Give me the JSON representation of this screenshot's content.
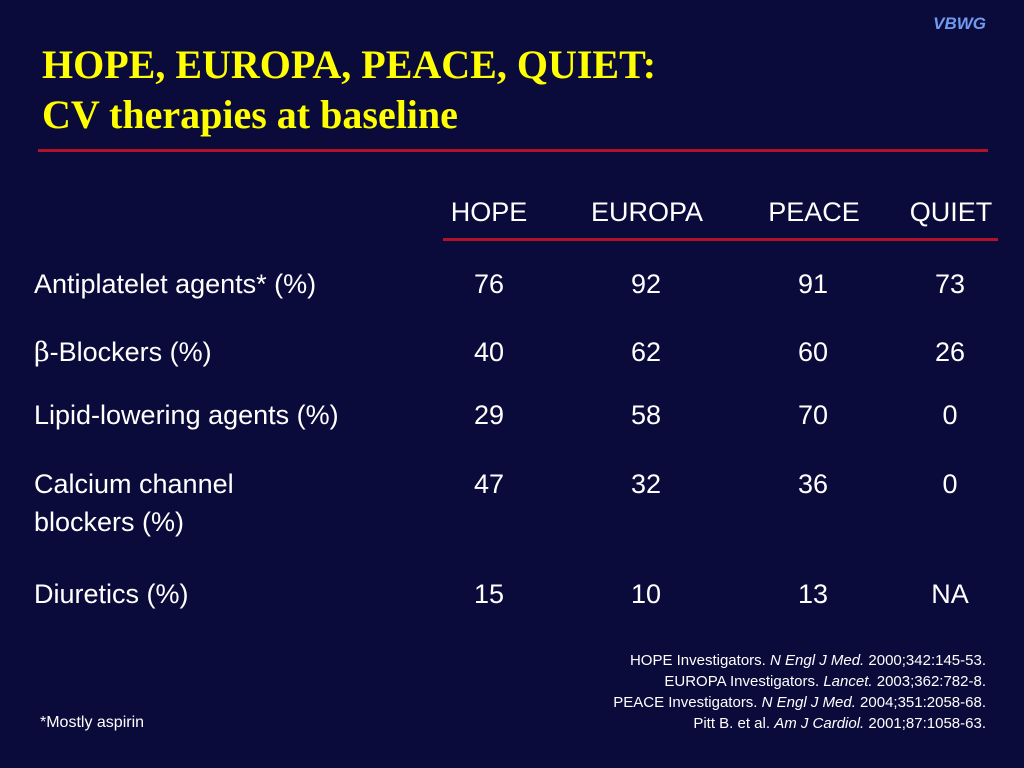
{
  "brand": "VBWG",
  "title": {
    "line1": "HOPE, EUROPA, PEACE, QUIET:",
    "line2": "CV therapies at baseline"
  },
  "table": {
    "columns": [
      "HOPE",
      "EUROPA",
      "PEACE",
      "QUIET"
    ],
    "rows": [
      {
        "label": "Antiplatelet agents* (%)",
        "values": [
          "76",
          "92",
          "91",
          "73"
        ]
      },
      {
        "label_symbol": "β",
        "label": "-Blockers (%)",
        "values": [
          "40",
          "62",
          "60",
          "26"
        ]
      },
      {
        "label": "Lipid-lowering agents  (%)",
        "values": [
          "29",
          "58",
          "70",
          "0"
        ]
      },
      {
        "label_line1": "Calcium channel",
        "label_line2": "blockers (%)",
        "values": [
          "47",
          "32",
          "36",
          "0"
        ]
      },
      {
        "label": "Diuretics (%)",
        "values": [
          "15",
          "10",
          "13",
          "NA"
        ]
      }
    ]
  },
  "references": [
    {
      "pre": "HOPE Investigators. ",
      "journal": "N Engl J Med.",
      "post": " 2000;342:145-53."
    },
    {
      "pre": "EUROPA Investigators. ",
      "journal": "Lancet.",
      "post": " 2003;362:782-8."
    },
    {
      "pre": "PEACE Investigators. ",
      "journal": "N Engl J Med.",
      "post": " 2004;351:2058-68."
    },
    {
      "pre": "Pitt B. et al. ",
      "journal": "Am J Cardiol.",
      "post": " 2001;87:1058-63."
    }
  ],
  "footnote": "*Mostly aspirin",
  "colors": {
    "background": "#0b0b3b",
    "title": "#ffff00",
    "rule": "#b0122a",
    "brand": "#6f9bf0",
    "text": "#ffffff"
  }
}
